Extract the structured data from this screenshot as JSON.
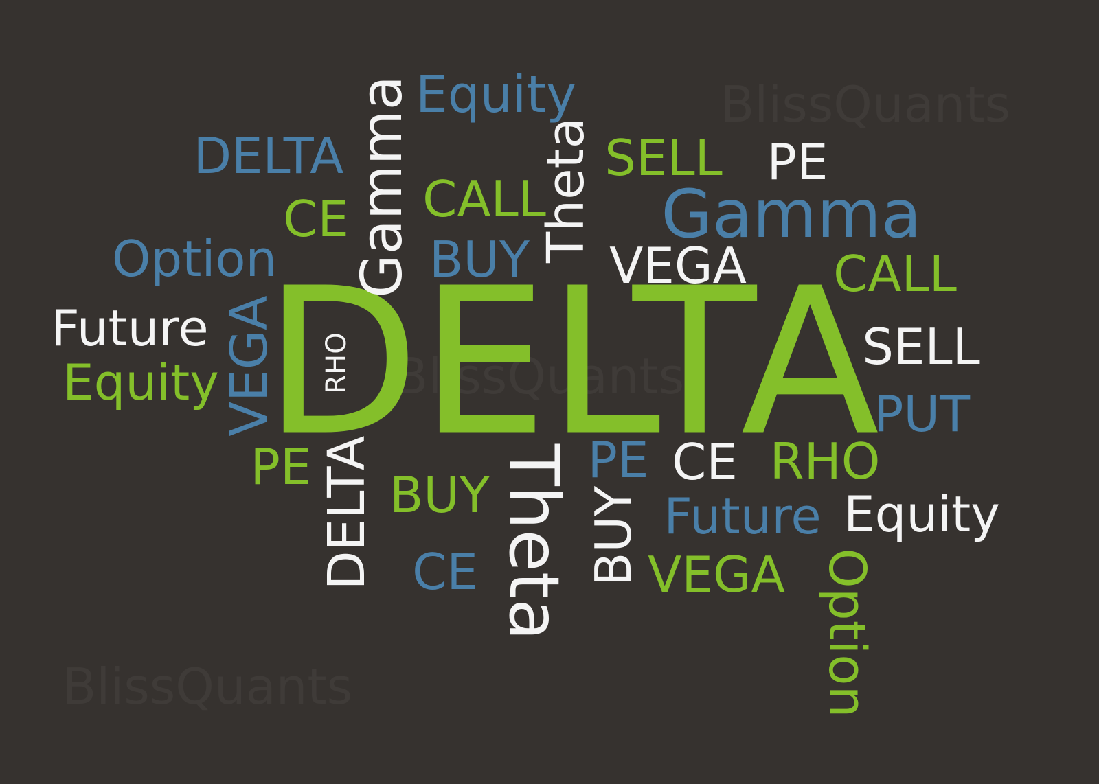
{
  "colors": {
    "background": "#36322f",
    "green": "#84bf2a",
    "blue": "#4a7fa8",
    "white": "#f4f4f4",
    "watermark": "#3f3b38"
  },
  "watermark": "BlissQuants",
  "words": [
    {
      "text": "DELTA",
      "color": "green",
      "name": "word-delta-main"
    },
    {
      "text": "Equity",
      "color": "blue",
      "name": "word-equity-top"
    },
    {
      "text": "DELTA",
      "color": "blue",
      "name": "word-delta-small"
    },
    {
      "text": "Gamma",
      "color": "white",
      "name": "word-gamma-vertical"
    },
    {
      "text": "Theta",
      "color": "white",
      "name": "word-theta-vertical"
    },
    {
      "text": "SELL",
      "color": "green",
      "name": "word-sell-top"
    },
    {
      "text": "PE",
      "color": "white",
      "name": "word-pe-top"
    },
    {
      "text": "CE",
      "color": "green",
      "name": "word-ce-left"
    },
    {
      "text": "CALL",
      "color": "green",
      "name": "word-call-center"
    },
    {
      "text": "Gamma",
      "color": "blue",
      "name": "word-gamma-right"
    },
    {
      "text": "Option",
      "color": "blue",
      "name": "word-option-left"
    },
    {
      "text": "BUY",
      "color": "blue",
      "name": "word-buy-top"
    },
    {
      "text": "VEGA",
      "color": "white",
      "name": "word-vega-top"
    },
    {
      "text": "CALL",
      "color": "green",
      "name": "word-call-right"
    },
    {
      "text": "Future",
      "color": "white",
      "name": "word-future-left"
    },
    {
      "text": "VEGA",
      "color": "blue",
      "name": "word-vega-vertical"
    },
    {
      "text": "RHO",
      "color": "white",
      "name": "word-rho-vertical"
    },
    {
      "text": "SELL",
      "color": "white",
      "name": "word-sell-right"
    },
    {
      "text": "Equity",
      "color": "green",
      "name": "word-equity-left"
    },
    {
      "text": "PUT",
      "color": "blue",
      "name": "word-put"
    },
    {
      "text": "PE",
      "color": "green",
      "name": "word-pe-left"
    },
    {
      "text": "DELTA",
      "color": "white",
      "name": "word-delta-vertical"
    },
    {
      "text": "BUY",
      "color": "green",
      "name": "word-buy-center"
    },
    {
      "text": "Theta",
      "color": "white",
      "name": "word-theta-inverted"
    },
    {
      "text": "PE",
      "color": "blue",
      "name": "word-pe-center"
    },
    {
      "text": "CE",
      "color": "white",
      "name": "word-ce-center"
    },
    {
      "text": "RHO",
      "color": "green",
      "name": "word-rho-right"
    },
    {
      "text": "Future",
      "color": "blue",
      "name": "word-future-right"
    },
    {
      "text": "Equity",
      "color": "white",
      "name": "word-equity-right"
    },
    {
      "text": "BUY",
      "color": "white",
      "name": "word-buy-vertical"
    },
    {
      "text": "CE",
      "color": "blue",
      "name": "word-ce-bottom"
    },
    {
      "text": "VEGA",
      "color": "green",
      "name": "word-vega-bottom"
    },
    {
      "text": "Option",
      "color": "green",
      "name": "word-option-vertical"
    }
  ]
}
